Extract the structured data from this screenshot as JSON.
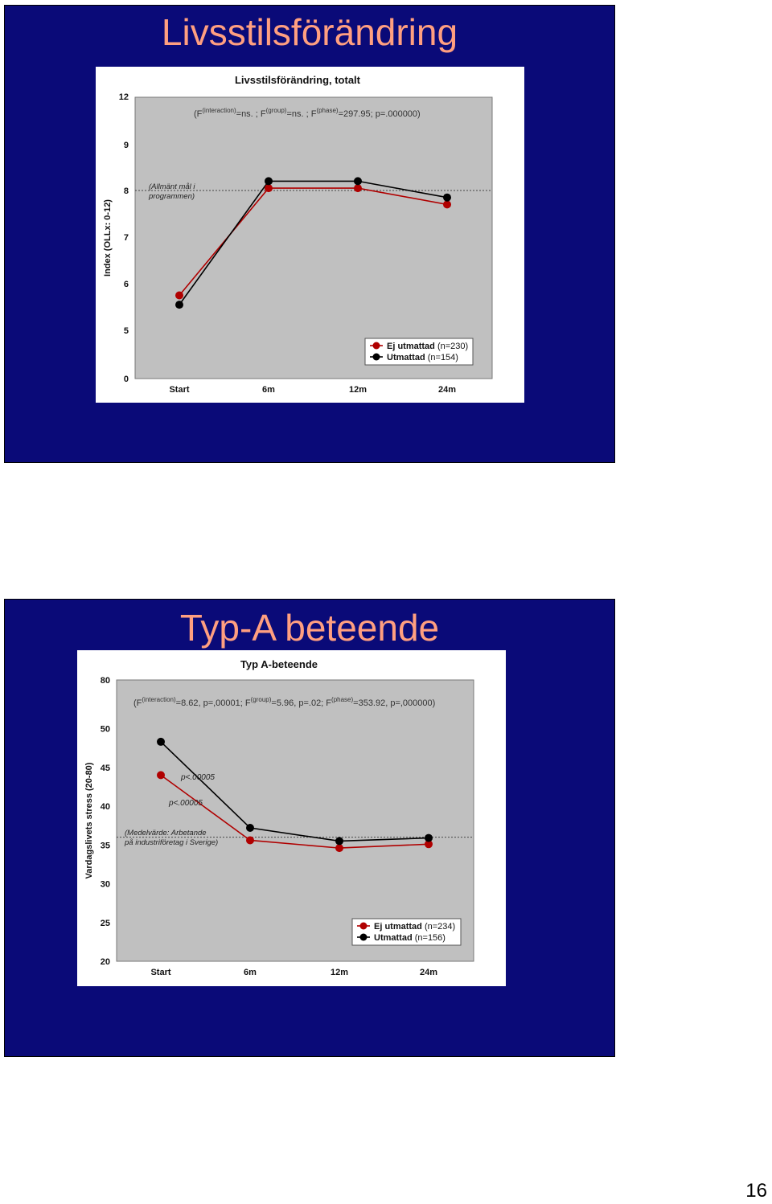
{
  "slides": [
    {
      "title": "Livsstilsförändring"
    },
    {
      "title": "Typ-A beteende"
    }
  ],
  "page_number": "16",
  "colors": {
    "slide_bg": "#0a0a78",
    "title": "#ff9f80",
    "plot_bg": "#c0c0c0",
    "series_red": "#b00000",
    "series_black": "#000000"
  },
  "chart_data": [
    {
      "type": "line",
      "title": "Livsstilsförändring, totalt",
      "stats": "(F(interaction)=ns. ;  F(group)=ns. ;  F(phase)=297.95; p=.000000)",
      "ylabel": "Index (OLLx: 0-12)",
      "categories": [
        "Start",
        "6m",
        "12m",
        "24m"
      ],
      "yticks": [
        "0",
        "5",
        "6",
        "7",
        "8",
        "9",
        "12"
      ],
      "reference_label": [
        "(Allmänt mål i",
        "programmen)"
      ],
      "series": [
        {
          "name": "Ej utmattad (n=230)",
          "label_bold": "Ej utmattad",
          "label_rest": "(n=230)",
          "values": [
            5.75,
            8.05,
            8.05,
            7.7
          ]
        },
        {
          "name": "Utmattad (n=154)",
          "label_bold": "Utmattad",
          "label_rest": "(n=154)",
          "values": [
            5.55,
            8.2,
            8.2,
            7.85
          ]
        }
      ],
      "reference_line": 8.0,
      "legend": "bottom-right",
      "axis_scale_note": "broken axis 0 → 5 and 9 → 12"
    },
    {
      "type": "line",
      "title": "Typ A-beteende",
      "stats": "(F(interaction)=8.62, p=,00001; F(group)=5.96, p=.02; F(phase)=353.92, p=,000000)",
      "ylabel": "Vardagslivets stress (20-80)",
      "categories": [
        "Start",
        "6m",
        "12m",
        "24m"
      ],
      "yticks": [
        "20",
        "25",
        "30",
        "35",
        "40",
        "45",
        "50",
        "80"
      ],
      "reference_label": [
        "(Medelvärde: Arbetande",
        "på industriföretag i Sverige)"
      ],
      "annotations": [
        "p<.00005",
        "p<.00005"
      ],
      "series": [
        {
          "name": "Ej utmattad (n=234)",
          "label_bold": "Ej utmattad",
          "label_rest": "(n=234)",
          "values": [
            44.0,
            35.6,
            34.6,
            35.1
          ]
        },
        {
          "name": "Utmattad (n=156)",
          "label_bold": "Utmattad",
          "label_rest": "(n=156)",
          "values": [
            48.3,
            37.2,
            35.5,
            35.9
          ]
        }
      ],
      "reference_line": 36.0,
      "legend": "bottom-right",
      "axis_scale_note": "broken axis 50 → 80"
    }
  ]
}
